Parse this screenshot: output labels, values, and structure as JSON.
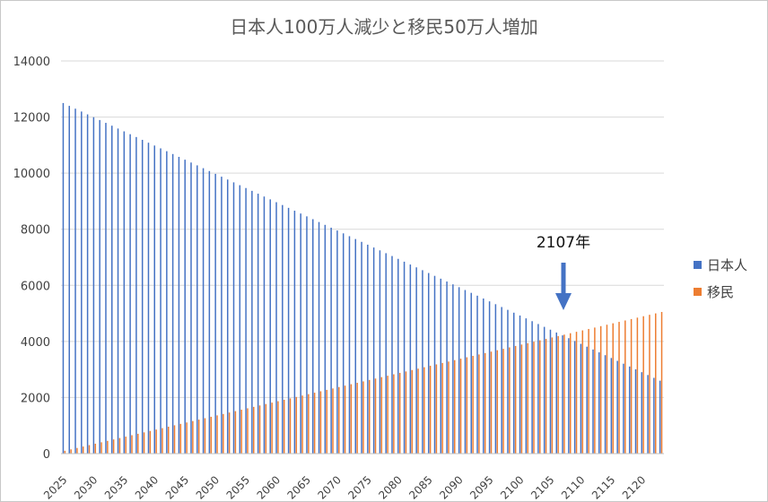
{
  "chart_data": {
    "type": "bar",
    "title": "日本人100万人減少と移民50万人増加",
    "xlabel": "",
    "ylabel": "",
    "ylim": [
      0,
      14000
    ],
    "yticks": [
      0,
      2000,
      4000,
      6000,
      8000,
      10000,
      12000,
      14000
    ],
    "x_start": 2025,
    "x_end": 2123,
    "x_tick_labels": [
      "2025",
      "2030",
      "2035",
      "2040",
      "2045",
      "2050",
      "2055",
      "2060",
      "2065",
      "2070",
      "2075",
      "2080",
      "2085",
      "2090",
      "2095",
      "2100",
      "2105",
      "2110",
      "2115",
      "2120"
    ],
    "grid": true,
    "legend_position": "right",
    "series": [
      {
        "name": "日本人",
        "color": "#4472C4",
        "start_value": 12500,
        "end_value": 2600
      },
      {
        "name": "移民",
        "color": "#ED7D31",
        "start_value": 100,
        "end_value": 5050
      }
    ],
    "annotation": {
      "text": "2107年",
      "year": 2107
    }
  }
}
